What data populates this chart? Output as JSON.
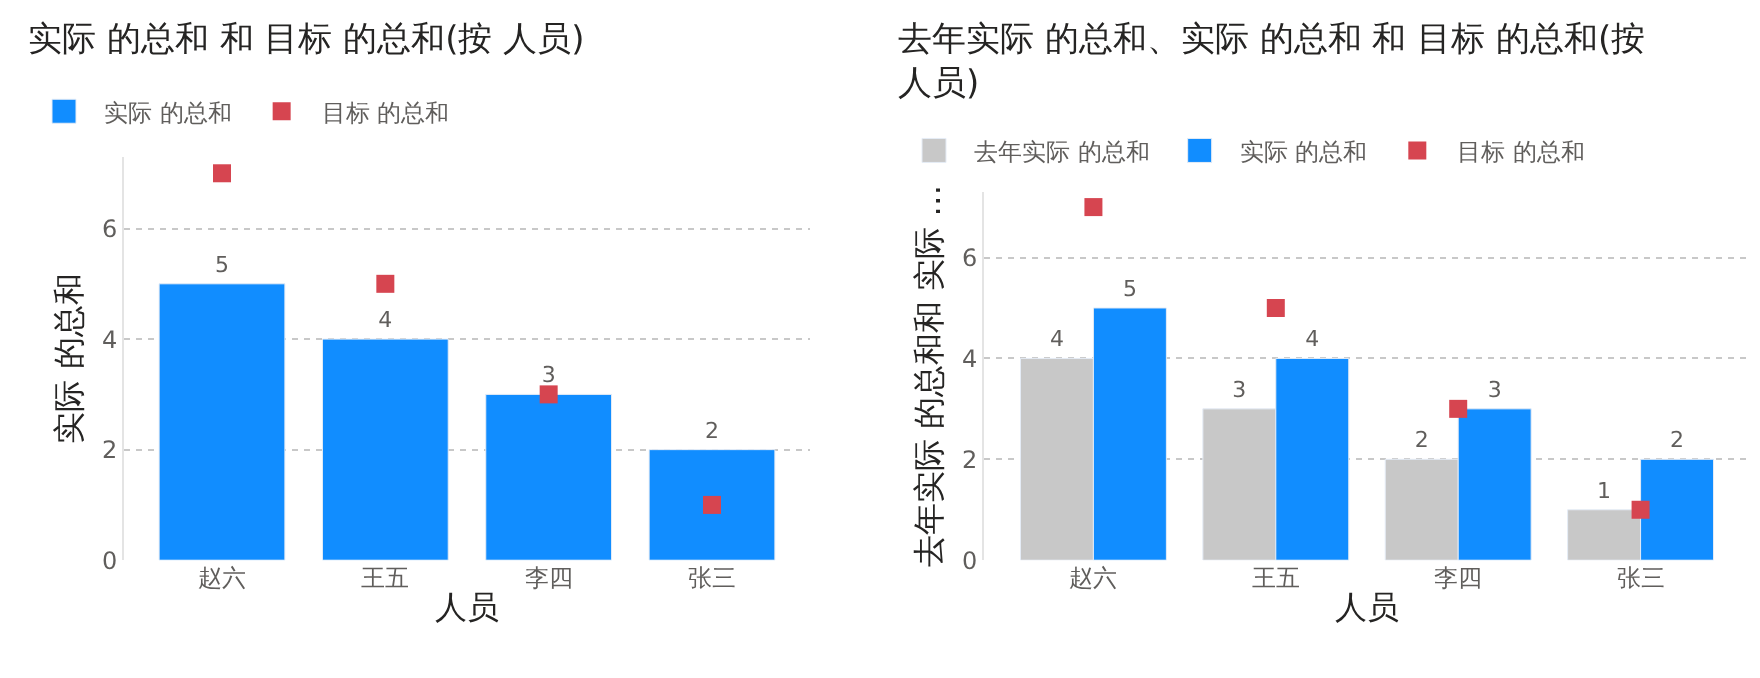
{
  "chart_data": [
    {
      "type": "bar",
      "title": "实际 的总和 和 目标 的总和(按 人员)",
      "xlabel": "人员",
      "ylabel": "实际 的总和",
      "categories": [
        "赵六",
        "王五",
        "李四",
        "张三"
      ],
      "ylim": [
        0,
        7.3
      ],
      "yticks": [
        0,
        2,
        4,
        6
      ],
      "grid": "y",
      "legend": "top left",
      "series": [
        {
          "name": "实际 的总和",
          "color": "#118dff",
          "values": [
            5,
            4,
            3,
            2
          ],
          "value_labels": [
            "5",
            "4",
            "3",
            "2"
          ]
        },
        {
          "name": "目标 的总和",
          "type": "scatter",
          "marker": "square",
          "color": "#d64550",
          "values": [
            7,
            5,
            3,
            1
          ]
        }
      ]
    },
    {
      "type": "bar",
      "title": "去年实际 的总和、实际 的总和 和 目标 的总和(按人员)",
      "xlabel": "人员",
      "ylabel": "去年实际 的总和和 实际 …",
      "categories": [
        "赵六",
        "王五",
        "李四",
        "张三"
      ],
      "ylim": [
        0,
        7.3
      ],
      "yticks": [
        0,
        2,
        4,
        6
      ],
      "grid": "y",
      "legend": "top left",
      "series": [
        {
          "name": "去年实际 的总和",
          "color": "#c8c8c8",
          "values": [
            4,
            3,
            2,
            1
          ],
          "value_labels": [
            "4",
            "3",
            "2",
            "1"
          ]
        },
        {
          "name": "实际 的总和",
          "color": "#118dff",
          "values": [
            5,
            4,
            3,
            2
          ],
          "value_labels": [
            "5",
            "4",
            "3",
            "2"
          ]
        },
        {
          "name": "目标 的总和",
          "type": "scatter",
          "marker": "square",
          "color": "#d64550",
          "values": [
            7,
            5,
            3,
            1
          ]
        }
      ]
    }
  ]
}
